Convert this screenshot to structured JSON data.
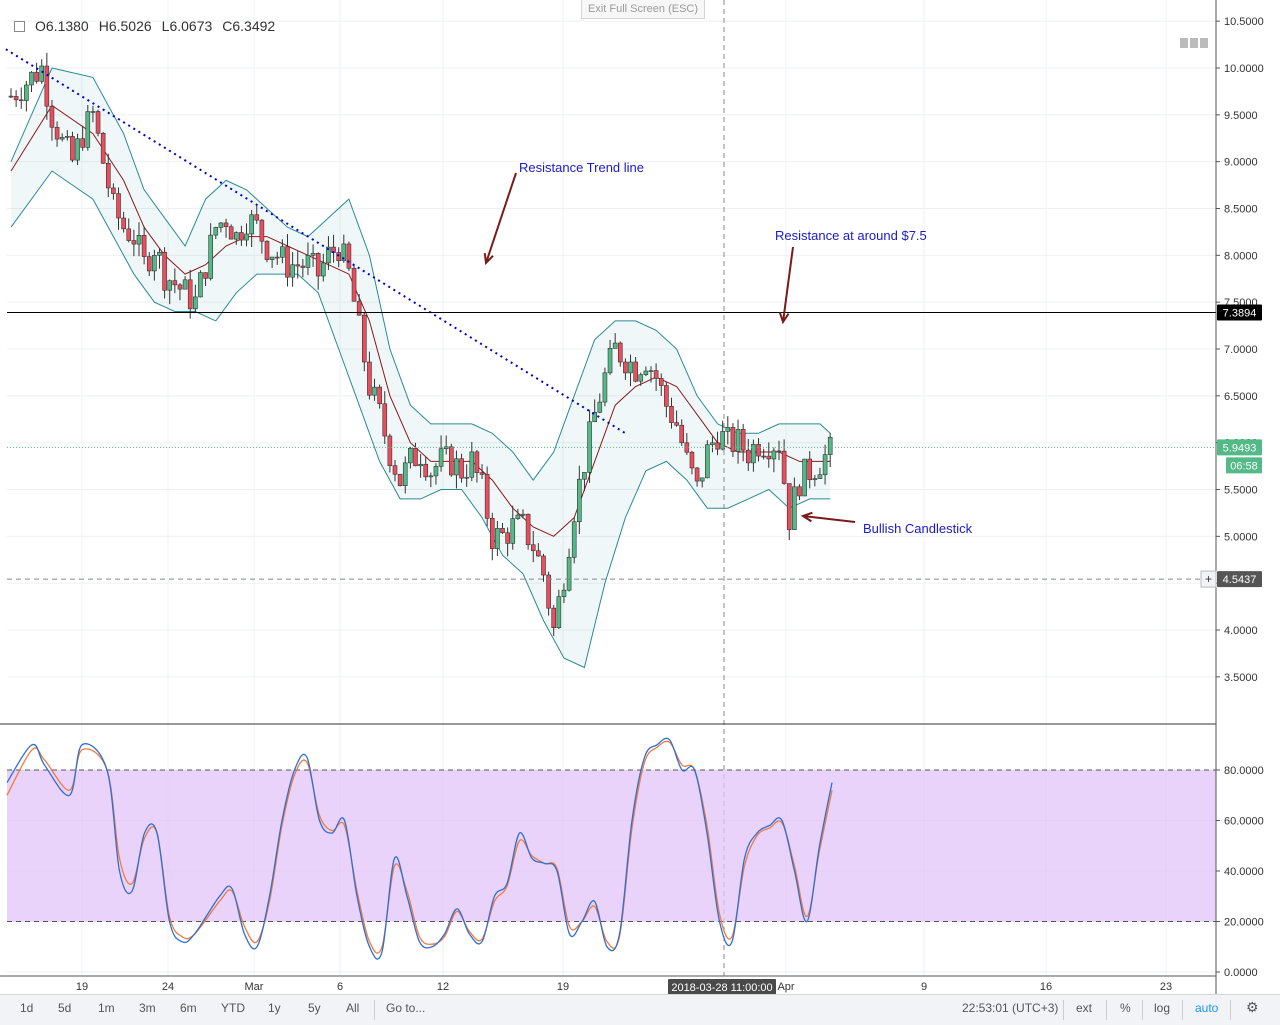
{
  "fullscreen_button": "Exit Full Screen (ESC)",
  "ohlc": {
    "open": "O6.1380",
    "high": "H6.5026",
    "low": "L6.0673",
    "close": "C6.3492"
  },
  "price_axis": {
    "ticks": [
      "10.5000",
      "10.0000",
      "9.5000",
      "9.0000",
      "8.5000",
      "8.0000",
      "7.5000",
      "7.0000",
      "6.5000",
      "6.0000",
      "5.5000",
      "5.0000",
      "4.5000",
      "4.0000",
      "3.5000"
    ]
  },
  "stoch_axis": {
    "ticks": [
      "80.0000",
      "60.0000",
      "40.0000",
      "20.0000",
      "0.0000"
    ]
  },
  "date_axis": {
    "labels": [
      "19",
      "24",
      "Mar",
      "6",
      "12",
      "19",
      "Apr",
      "9",
      "16",
      "23"
    ]
  },
  "crosshair_date": "2018-03-28 11:00:00",
  "price_badges": {
    "resistance": "7.3894",
    "current": "5.9493",
    "countdown": "06:58",
    "cursor": "4.5437"
  },
  "annotations": {
    "trendline": "Resistance Trend line",
    "resistance": "Resistance at around $7.5",
    "bullish": "Bullish Candlestick"
  },
  "toolbar": {
    "ranges": [
      "1d",
      "5d",
      "1m",
      "3m",
      "6m",
      "YTD",
      "1y",
      "5y",
      "All"
    ],
    "goto": "Go to...",
    "time": "22:53:01 (UTC+3)",
    "ext": "ext",
    "percent": "%",
    "log": "log",
    "auto": "auto"
  },
  "colors": {
    "up": "#53b987",
    "down": "#eb4d5c",
    "band": "#2a8a96",
    "sma": "#8b1a1a",
    "trend": "#0000cc",
    "stoch_k": "#2e6fd6",
    "stoch_d": "#f07b3f",
    "stoch_fill": "#e1c4f8"
  },
  "chart_data": {
    "type": "candlestick",
    "price_range": [
      3.2,
      10.6
    ],
    "resistance_level": 7.3894,
    "current_price": 5.9493,
    "cursor_price": 4.5437,
    "trendline": [
      [
        -0.5,
        10.2
      ],
      [
        60,
        6.1
      ]
    ],
    "close_path": [
      [
        0,
        9.7
      ],
      [
        1,
        9.8
      ],
      [
        2,
        9.9
      ],
      [
        3,
        10.0
      ],
      [
        4,
        9.5
      ],
      [
        5,
        9.2
      ],
      [
        6,
        9.0
      ],
      [
        7,
        9.3
      ],
      [
        8,
        9.5
      ],
      [
        9,
        9.0
      ],
      [
        10,
        8.5
      ],
      [
        11,
        8.3
      ],
      [
        12,
        8.2
      ],
      [
        13,
        7.9
      ],
      [
        14,
        8.1
      ],
      [
        15,
        7.8
      ],
      [
        16,
        7.7
      ],
      [
        17,
        7.6
      ],
      [
        18,
        7.5
      ],
      [
        19,
        7.9
      ],
      [
        20,
        8.3
      ],
      [
        21,
        8.4
      ],
      [
        22,
        8.2
      ],
      [
        23,
        8.4
      ],
      [
        24,
        8.3
      ],
      [
        25,
        8.1
      ],
      [
        26,
        8.0
      ],
      [
        27,
        7.9
      ],
      [
        28,
        7.9
      ],
      [
        29,
        7.9
      ],
      [
        30,
        7.8
      ],
      [
        31,
        8.0
      ],
      [
        32,
        8.1
      ],
      [
        33,
        7.8
      ],
      [
        34,
        7.2
      ],
      [
        35,
        6.6
      ],
      [
        36,
        6.3
      ],
      [
        37,
        5.9
      ],
      [
        38,
        5.6
      ],
      [
        39,
        5.8
      ],
      [
        40,
        5.9
      ],
      [
        41,
        5.7
      ],
      [
        42,
        5.8
      ],
      [
        43,
        5.8
      ],
      [
        44,
        5.7
      ],
      [
        45,
        5.8
      ],
      [
        46,
        5.5
      ],
      [
        47,
        5.0
      ],
      [
        48,
        5.0
      ],
      [
        49,
        5.1
      ],
      [
        50,
        5.1
      ],
      [
        51,
        4.9
      ],
      [
        52,
        4.6
      ],
      [
        53,
        4.0
      ],
      [
        54,
        4.6
      ],
      [
        55,
        5.3
      ],
      [
        56,
        5.8
      ],
      [
        57,
        6.3
      ],
      [
        58,
        6.7
      ],
      [
        59,
        7.0
      ],
      [
        60,
        6.9
      ],
      [
        61,
        6.8
      ],
      [
        62,
        6.9
      ],
      [
        63,
        6.7
      ],
      [
        64,
        6.4
      ],
      [
        65,
        6.2
      ],
      [
        66,
        5.8
      ],
      [
        67,
        5.5
      ],
      [
        68,
        5.9
      ],
      [
        69,
        6.1
      ],
      [
        70,
        6.0
      ],
      [
        71,
        6.0
      ],
      [
        72,
        5.9
      ],
      [
        73,
        6.0
      ],
      [
        74,
        6.0
      ],
      [
        75,
        6.0
      ],
      [
        76,
        5.2
      ],
      [
        77,
        5.6
      ],
      [
        78,
        5.7
      ],
      [
        79,
        5.8
      ],
      [
        80,
        5.9
      ]
    ],
    "bb_upper": [
      [
        0,
        9.0
      ],
      [
        4,
        10.0
      ],
      [
        8,
        9.9
      ],
      [
        11,
        9.3
      ],
      [
        13,
        8.7
      ],
      [
        15,
        8.4
      ],
      [
        17,
        8.1
      ],
      [
        19,
        8.6
      ],
      [
        21,
        8.8
      ],
      [
        23,
        8.7
      ],
      [
        25,
        8.5
      ],
      [
        27,
        8.3
      ],
      [
        29,
        8.2
      ],
      [
        31,
        8.4
      ],
      [
        33,
        8.6
      ],
      [
        35,
        8.0
      ],
      [
        37,
        7.0
      ],
      [
        39,
        6.4
      ],
      [
        41,
        6.2
      ],
      [
        43,
        6.2
      ],
      [
        45,
        6.2
      ],
      [
        47,
        6.1
      ],
      [
        49,
        5.9
      ],
      [
        51,
        5.6
      ],
      [
        53,
        5.9
      ],
      [
        55,
        6.5
      ],
      [
        57,
        7.1
      ],
      [
        59,
        7.3
      ],
      [
        61,
        7.3
      ],
      [
        63,
        7.2
      ],
      [
        65,
        7.0
      ],
      [
        67,
        6.5
      ],
      [
        69,
        6.2
      ],
      [
        71,
        6.1
      ],
      [
        73,
        6.1
      ],
      [
        75,
        6.2
      ],
      [
        77,
        6.2
      ],
      [
        79,
        6.2
      ],
      [
        80,
        6.1
      ]
    ],
    "bb_lower": [
      [
        0,
        8.3
      ],
      [
        4,
        8.9
      ],
      [
        8,
        8.6
      ],
      [
        10,
        8.2
      ],
      [
        12,
        7.8
      ],
      [
        14,
        7.5
      ],
      [
        16,
        7.4
      ],
      [
        18,
        7.4
      ],
      [
        20,
        7.3
      ],
      [
        22,
        7.6
      ],
      [
        24,
        7.8
      ],
      [
        26,
        7.8
      ],
      [
        28,
        7.8
      ],
      [
        30,
        7.6
      ],
      [
        32,
        7.0
      ],
      [
        34,
        6.4
      ],
      [
        36,
        5.8
      ],
      [
        38,
        5.4
      ],
      [
        40,
        5.4
      ],
      [
        42,
        5.5
      ],
      [
        44,
        5.5
      ],
      [
        46,
        5.2
      ],
      [
        48,
        4.8
      ],
      [
        50,
        4.6
      ],
      [
        52,
        4.1
      ],
      [
        54,
        3.7
      ],
      [
        56,
        3.6
      ],
      [
        58,
        4.5
      ],
      [
        60,
        5.2
      ],
      [
        62,
        5.7
      ],
      [
        64,
        5.8
      ],
      [
        66,
        5.6
      ],
      [
        68,
        5.3
      ],
      [
        70,
        5.3
      ],
      [
        72,
        5.4
      ],
      [
        74,
        5.5
      ],
      [
        76,
        5.3
      ],
      [
        78,
        5.4
      ],
      [
        80,
        5.4
      ]
    ],
    "sma": [
      [
        0,
        8.9
      ],
      [
        4,
        9.6
      ],
      [
        8,
        9.3
      ],
      [
        11,
        8.8
      ],
      [
        13,
        8.3
      ],
      [
        15,
        8.0
      ],
      [
        17,
        7.8
      ],
      [
        19,
        7.9
      ],
      [
        21,
        8.1
      ],
      [
        23,
        8.2
      ],
      [
        25,
        8.2
      ],
      [
        27,
        8.1
      ],
      [
        29,
        8.0
      ],
      [
        31,
        7.9
      ],
      [
        33,
        7.8
      ],
      [
        35,
        7.3
      ],
      [
        37,
        6.5
      ],
      [
        39,
        6.0
      ],
      [
        41,
        5.8
      ],
      [
        43,
        5.8
      ],
      [
        45,
        5.8
      ],
      [
        47,
        5.6
      ],
      [
        49,
        5.3
      ],
      [
        51,
        5.1
      ],
      [
        53,
        5.0
      ],
      [
        55,
        5.2
      ],
      [
        57,
        5.8
      ],
      [
        59,
        6.4
      ],
      [
        61,
        6.6
      ],
      [
        63,
        6.7
      ],
      [
        65,
        6.6
      ],
      [
        67,
        6.3
      ],
      [
        69,
        6.0
      ],
      [
        71,
        5.9
      ],
      [
        73,
        5.9
      ],
      [
        75,
        5.9
      ],
      [
        77,
        5.8
      ],
      [
        79,
        5.8
      ],
      [
        80,
        5.8
      ]
    ],
    "stochastic": {
      "range": [
        0,
        100
      ],
      "bands": [
        20,
        80
      ],
      "k": [
        [
          0,
          75
        ],
        [
          2,
          90
        ],
        [
          3,
          82
        ],
        [
          5,
          70
        ],
        [
          6,
          90
        ],
        [
          8,
          80
        ],
        [
          9,
          40
        ],
        [
          10,
          32
        ],
        [
          11,
          55
        ],
        [
          12,
          55
        ],
        [
          13,
          20
        ],
        [
          14,
          12
        ],
        [
          15,
          15
        ],
        [
          17,
          30
        ],
        [
          18,
          33
        ],
        [
          19,
          15
        ],
        [
          20,
          10
        ],
        [
          21,
          30
        ],
        [
          22,
          60
        ],
        [
          23,
          80
        ],
        [
          24,
          85
        ],
        [
          25,
          60
        ],
        [
          26,
          55
        ],
        [
          27,
          60
        ],
        [
          28,
          30
        ],
        [
          29,
          10
        ],
        [
          30,
          8
        ],
        [
          31,
          45
        ],
        [
          32,
          30
        ],
        [
          33,
          12
        ],
        [
          34,
          10
        ],
        [
          35,
          15
        ],
        [
          36,
          25
        ],
        [
          37,
          15
        ],
        [
          38,
          12
        ],
        [
          39,
          30
        ],
        [
          40,
          35
        ],
        [
          41,
          55
        ],
        [
          42,
          45
        ],
        [
          43,
          43
        ],
        [
          44,
          40
        ],
        [
          45,
          15
        ],
        [
          46,
          20
        ],
        [
          47,
          28
        ],
        [
          48,
          10
        ],
        [
          49,
          15
        ],
        [
          50,
          60
        ],
        [
          51,
          85
        ],
        [
          52,
          90
        ],
        [
          53,
          92
        ],
        [
          54,
          80
        ],
        [
          55,
          80
        ],
        [
          56,
          55
        ],
        [
          57,
          20
        ],
        [
          58,
          12
        ],
        [
          59,
          45
        ],
        [
          60,
          55
        ],
        [
          61,
          58
        ],
        [
          62,
          60
        ],
        [
          63,
          40
        ],
        [
          64,
          20
        ],
        [
          65,
          50
        ],
        [
          66,
          75
        ]
      ],
      "d": [
        [
          0,
          70
        ],
        [
          2,
          88
        ],
        [
          3,
          84
        ],
        [
          5,
          72
        ],
        [
          6,
          88
        ],
        [
          8,
          80
        ],
        [
          9,
          45
        ],
        [
          10,
          35
        ],
        [
          11,
          53
        ],
        [
          12,
          55
        ],
        [
          13,
          22
        ],
        [
          14,
          14
        ],
        [
          15,
          15
        ],
        [
          17,
          28
        ],
        [
          18,
          32
        ],
        [
          19,
          18
        ],
        [
          20,
          12
        ],
        [
          21,
          28
        ],
        [
          22,
          58
        ],
        [
          23,
          78
        ],
        [
          24,
          83
        ],
        [
          25,
          62
        ],
        [
          26,
          56
        ],
        [
          27,
          58
        ],
        [
          28,
          32
        ],
        [
          29,
          12
        ],
        [
          30,
          10
        ],
        [
          31,
          42
        ],
        [
          32,
          32
        ],
        [
          33,
          14
        ],
        [
          34,
          11
        ],
        [
          35,
          14
        ],
        [
          36,
          24
        ],
        [
          37,
          16
        ],
        [
          38,
          13
        ],
        [
          39,
          28
        ],
        [
          40,
          34
        ],
        [
          41,
          52
        ],
        [
          42,
          46
        ],
        [
          43,
          43
        ],
        [
          44,
          41
        ],
        [
          45,
          18
        ],
        [
          46,
          20
        ],
        [
          47,
          26
        ],
        [
          48,
          12
        ],
        [
          49,
          14
        ],
        [
          50,
          57
        ],
        [
          51,
          83
        ],
        [
          52,
          89
        ],
        [
          53,
          91
        ],
        [
          54,
          82
        ],
        [
          55,
          80
        ],
        [
          56,
          58
        ],
        [
          57,
          23
        ],
        [
          58,
          14
        ],
        [
          59,
          42
        ],
        [
          60,
          54
        ],
        [
          61,
          57
        ],
        [
          62,
          59
        ],
        [
          63,
          42
        ],
        [
          64,
          22
        ],
        [
          65,
          48
        ],
        [
          66,
          72
        ]
      ]
    }
  }
}
